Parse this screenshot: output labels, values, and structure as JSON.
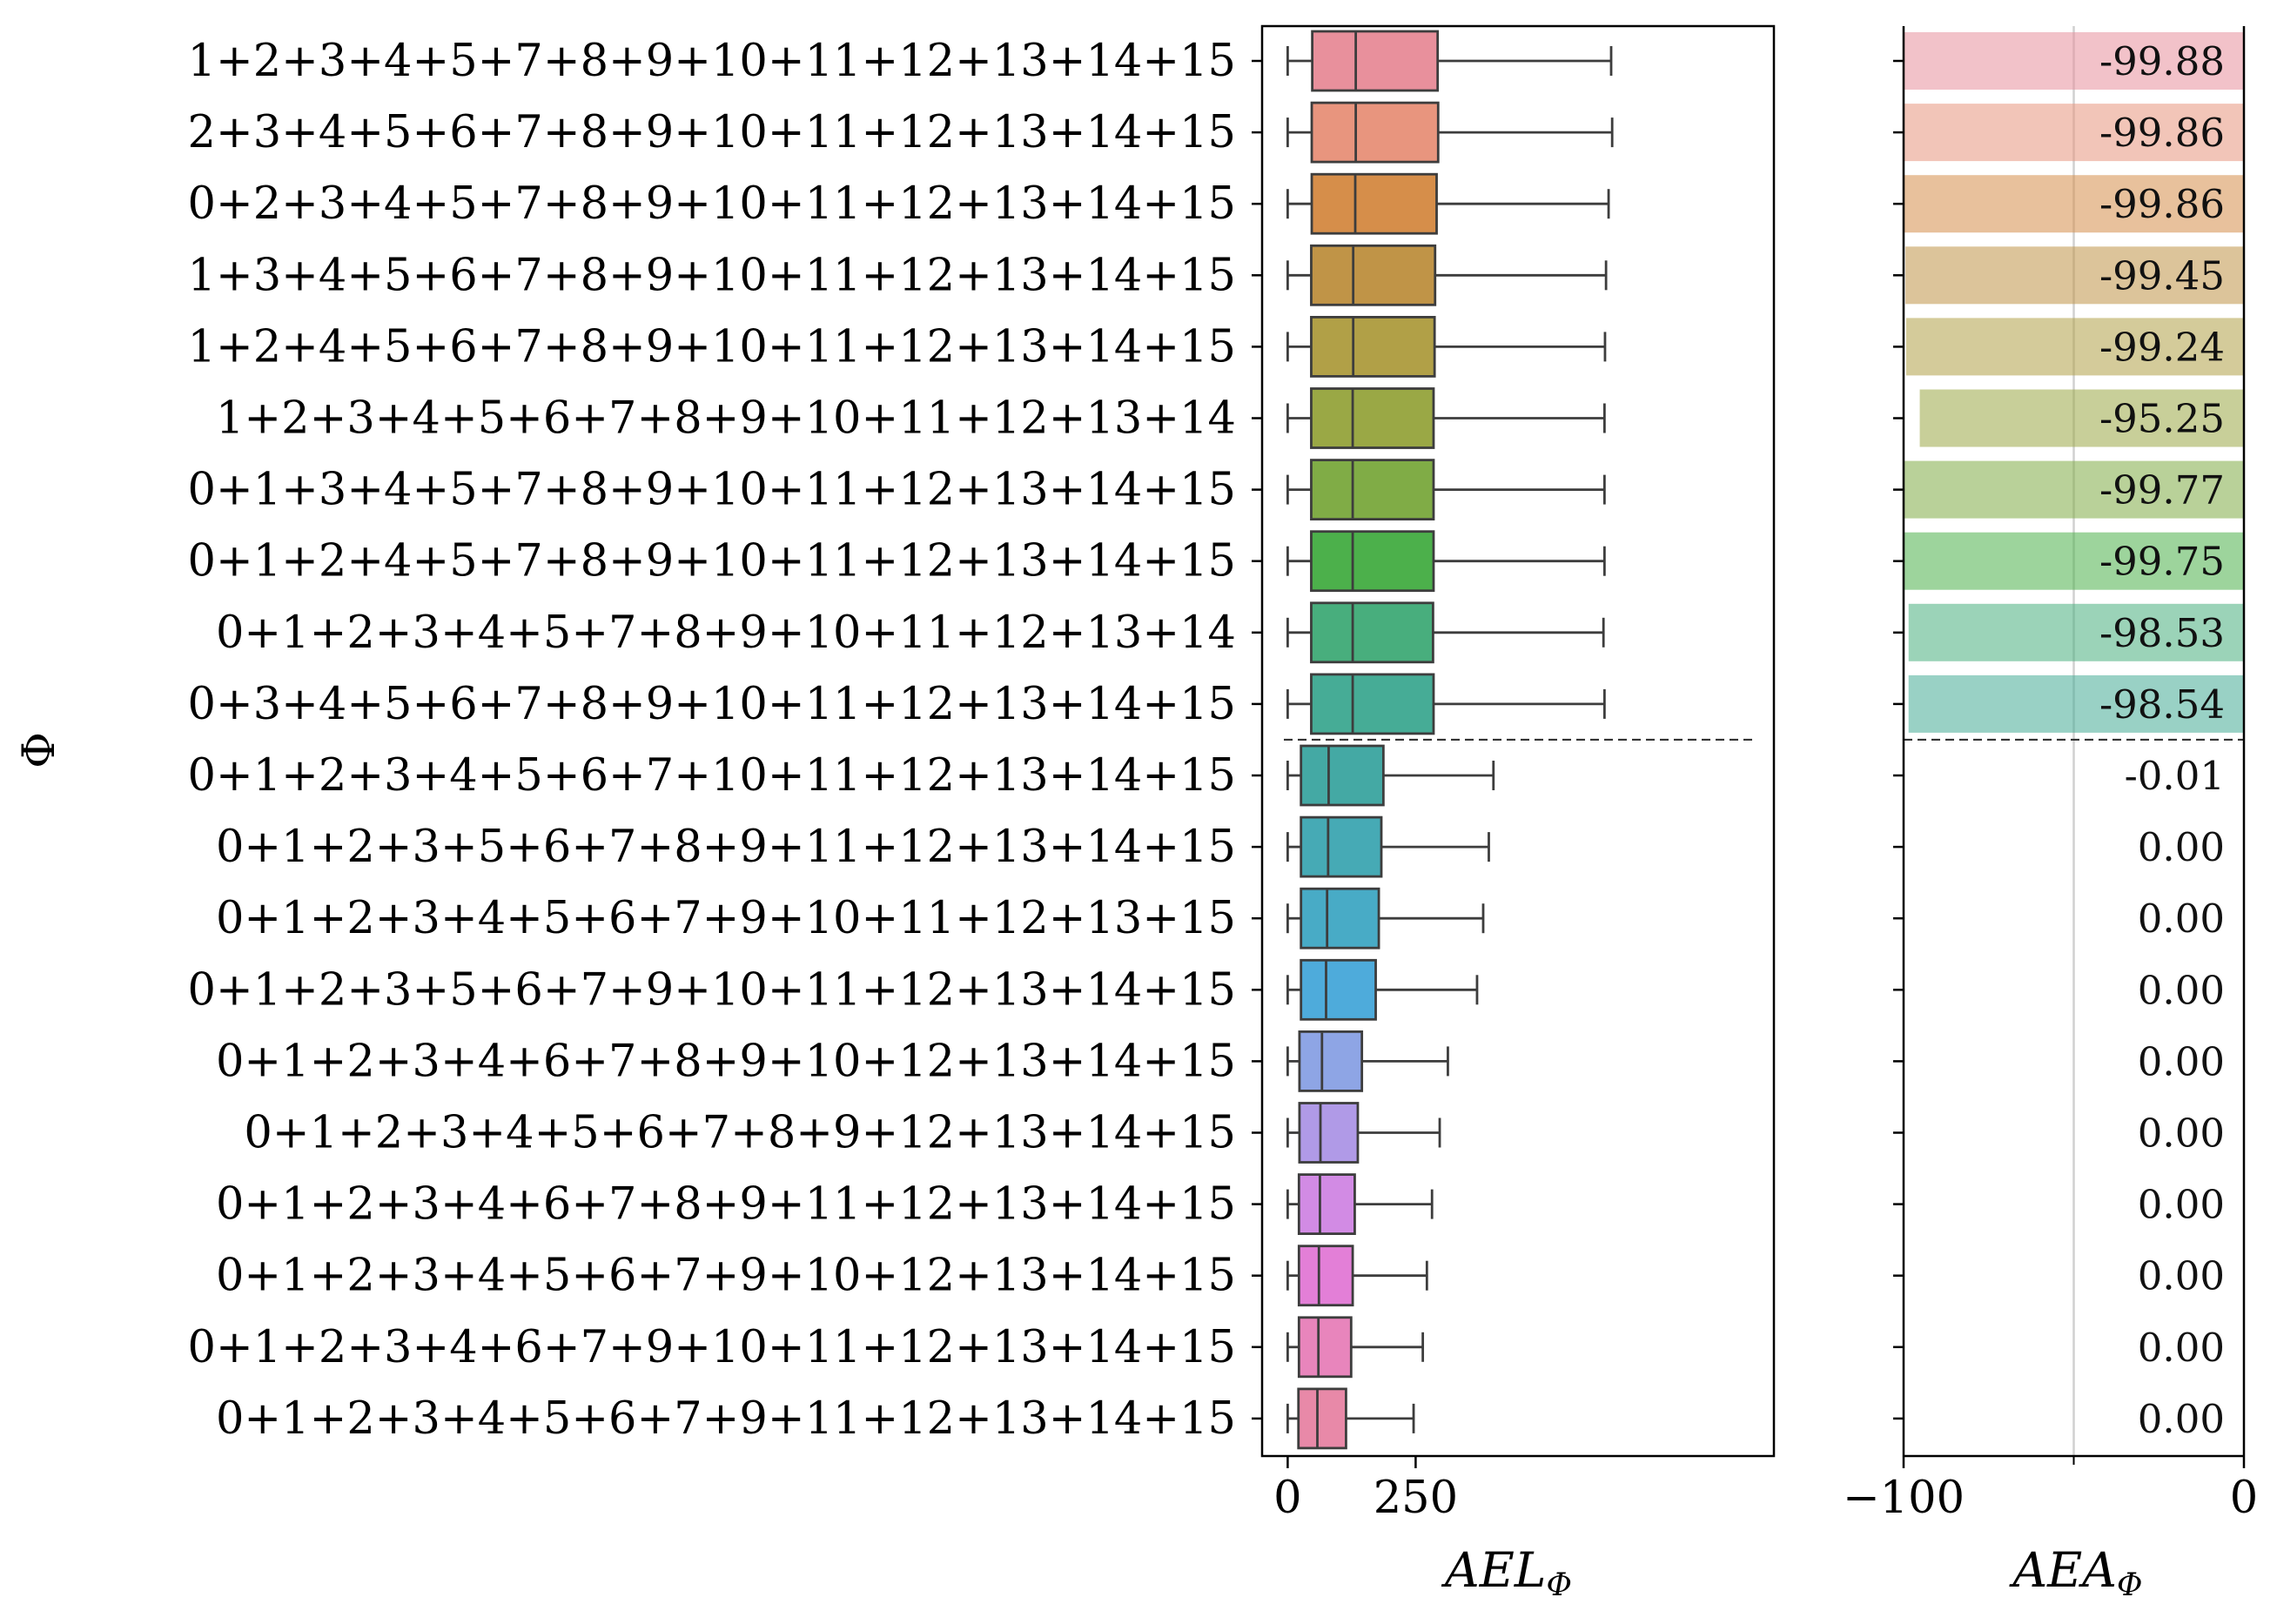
{
  "chart_data": [
    {
      "type": "box",
      "ylabel": "Φ",
      "xlabel": "AEL",
      "xlabel_sub": "Φ",
      "xlim": [
        -50,
        950
      ],
      "xticks": [
        0,
        250
      ],
      "categories": [
        "1+2+3+4+5+7+8+9+10+11+12+13+14+15",
        "2+3+4+5+6+7+8+9+10+11+12+13+14+15",
        "0+2+3+4+5+7+8+9+10+11+12+13+14+15",
        "1+3+4+5+6+7+8+9+10+11+12+13+14+15",
        "1+2+4+5+6+7+8+9+10+11+12+13+14+15",
        "1+2+3+4+5+6+7+8+9+10+11+12+13+14",
        "0+1+3+4+5+7+8+9+10+11+12+13+14+15",
        "0+1+2+4+5+7+8+9+10+11+12+13+14+15",
        "0+1+2+3+4+5+7+8+9+10+11+12+13+14",
        "0+3+4+5+6+7+8+9+10+11+12+13+14+15",
        "0+1+2+3+4+5+6+7+10+11+12+13+14+15",
        "0+1+2+3+5+6+7+8+9+11+12+13+14+15",
        "0+1+2+3+4+5+6+7+9+10+11+12+13+15",
        "0+1+2+3+5+6+7+9+10+11+12+13+14+15",
        "0+1+2+3+4+6+7+8+9+10+12+13+14+15",
        "0+1+2+3+4+5+6+7+8+9+12+13+14+15",
        "0+1+2+3+4+6+7+8+9+11+12+13+14+15",
        "0+1+2+3+4+5+6+7+9+10+12+13+14+15",
        "0+1+2+3+4+6+7+9+10+11+12+13+14+15",
        "0+1+2+3+4+5+6+7+9+11+12+13+14+15"
      ],
      "boxes": [
        {
          "whislo": 0,
          "q1": 48,
          "med": 133,
          "q3": 293,
          "whishi": 632
        },
        {
          "whislo": 0,
          "q1": 47,
          "med": 133,
          "q3": 294,
          "whishi": 634
        },
        {
          "whislo": 0,
          "q1": 47,
          "med": 132,
          "q3": 291,
          "whishi": 627
        },
        {
          "whislo": 0,
          "q1": 46,
          "med": 128,
          "q3": 288,
          "whishi": 622
        },
        {
          "whislo": 0,
          "q1": 46,
          "med": 128,
          "q3": 287,
          "whishi": 620
        },
        {
          "whislo": 0,
          "q1": 46,
          "med": 127,
          "q3": 285,
          "whishi": 619
        },
        {
          "whislo": 0,
          "q1": 46,
          "med": 127,
          "q3": 285,
          "whishi": 619
        },
        {
          "whislo": 0,
          "q1": 46,
          "med": 127,
          "q3": 285,
          "whishi": 619
        },
        {
          "whislo": 0,
          "q1": 46,
          "med": 127,
          "q3": 284,
          "whishi": 617
        },
        {
          "whislo": 0,
          "q1": 46,
          "med": 127,
          "q3": 285,
          "whishi": 619
        },
        {
          "whislo": 0,
          "q1": 26,
          "med": 80,
          "q3": 187,
          "whishi": 402
        },
        {
          "whislo": 0,
          "q1": 26,
          "med": 79,
          "q3": 183,
          "whishi": 393
        },
        {
          "whislo": 0,
          "q1": 26,
          "med": 77,
          "q3": 178,
          "whishi": 382
        },
        {
          "whislo": 0,
          "q1": 26,
          "med": 75,
          "q3": 172,
          "whishi": 370
        },
        {
          "whislo": 0,
          "q1": 23,
          "med": 67,
          "q3": 145,
          "whishi": 313
        },
        {
          "whislo": 0,
          "q1": 23,
          "med": 64,
          "q3": 137,
          "whishi": 297
        },
        {
          "whislo": 0,
          "q1": 22,
          "med": 63,
          "q3": 131,
          "whishi": 282
        },
        {
          "whislo": 0,
          "q1": 22,
          "med": 61,
          "q3": 127,
          "whishi": 272
        },
        {
          "whislo": 0,
          "q1": 22,
          "med": 60,
          "q3": 124,
          "whishi": 264
        },
        {
          "whislo": 0,
          "q1": 21,
          "med": 58,
          "q3": 114,
          "whishi": 246
        }
      ],
      "separator_after_index": 9
    },
    {
      "type": "bar",
      "orientation": "horizontal",
      "xlabel": "AEA",
      "xlabel_sub": "Φ",
      "xlim": [
        -100,
        0
      ],
      "xticks": [
        -100,
        0
      ],
      "xtick_labels": [
        "−100",
        "0"
      ],
      "values": [
        -99.88,
        -99.86,
        -99.86,
        -99.45,
        -99.24,
        -95.25,
        -99.77,
        -99.75,
        -98.53,
        -98.54,
        -0.01,
        0.0,
        0.0,
        0.0,
        0.0,
        0.0,
        0.0,
        0.0,
        0.0,
        0.0
      ],
      "value_labels": [
        "-99.88",
        "-99.86",
        "-99.86",
        "-99.45",
        "-99.24",
        "-95.25",
        "-99.77",
        "-99.75",
        "-98.53",
        "-98.54",
        "-0.01",
        "0.00",
        "0.00",
        "0.00",
        "0.00",
        "0.00",
        "0.00",
        "0.00",
        "0.00",
        "0.00"
      ],
      "reference_line": -50,
      "separator_after_index": 9
    }
  ],
  "colors": [
    "#e8909c",
    "#e8957e",
    "#d68e4a",
    "#c09447",
    "#b1a047",
    "#9aa845",
    "#80ac46",
    "#4cb04b",
    "#48ae7d",
    "#46ac96",
    "#44a9a4",
    "#46aab5",
    "#48abc6",
    "#4eabdb",
    "#8ea5e5",
    "#b09ae7",
    "#d28be4",
    "#e37fd7",
    "#e885bc",
    "#e889a8"
  ]
}
